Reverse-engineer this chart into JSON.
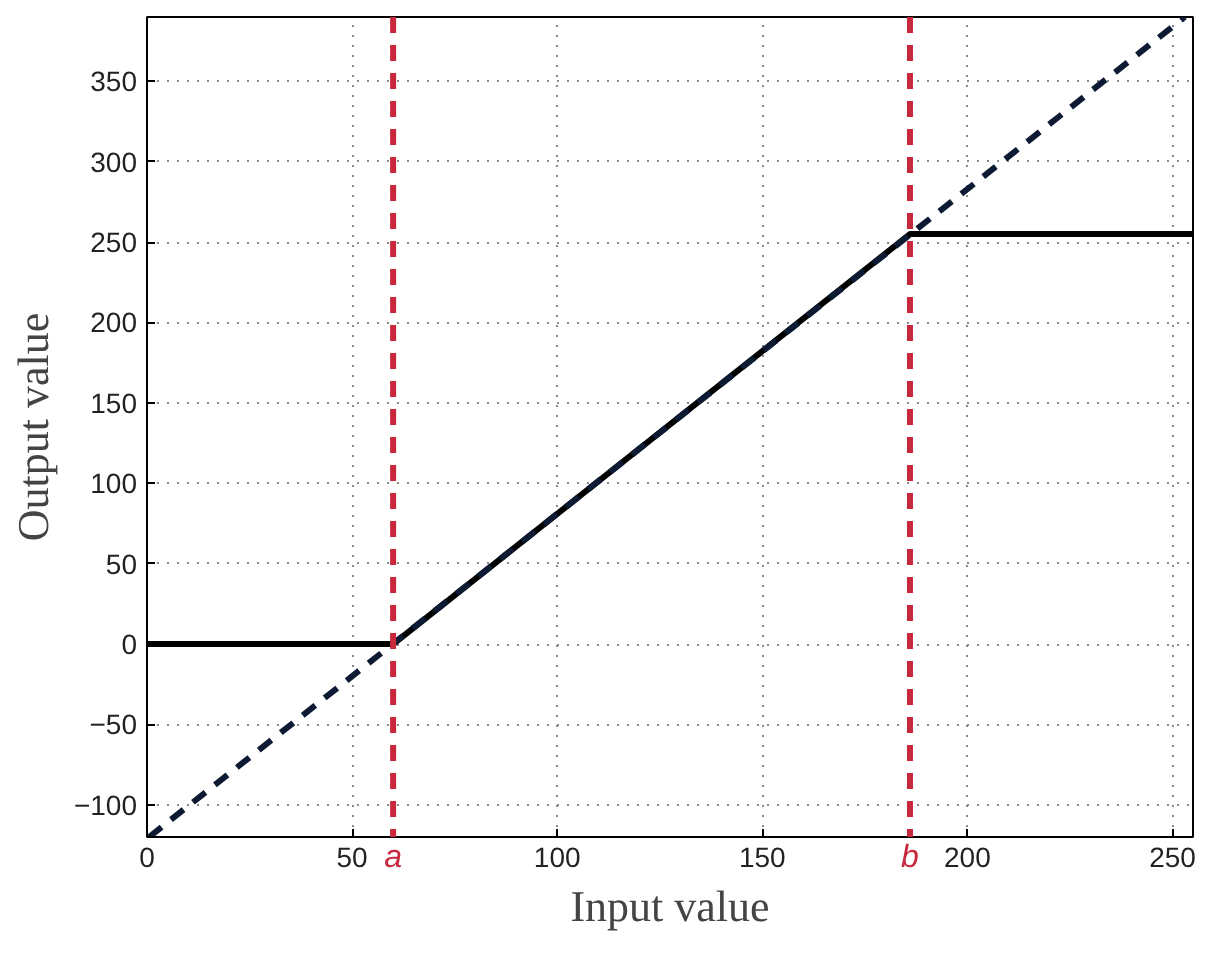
{
  "chart_data": {
    "type": "line",
    "xlabel": "Input value",
    "ylabel": "Output value",
    "xlim": [
      0,
      255
    ],
    "ylim": [
      -120,
      390
    ],
    "xticks": [
      0,
      50,
      100,
      150,
      200,
      250
    ],
    "yticks": [
      {
        "value": -100,
        "label": "−100"
      },
      {
        "value": -50,
        "label": "−50"
      },
      0,
      50,
      100,
      150,
      200,
      250,
      300,
      350
    ],
    "grid": true,
    "series": [
      {
        "color": "#000000",
        "x": [
          0,
          60,
          186,
          255
        ],
        "values": [
          0,
          0,
          255,
          255
        ],
        "line_style": "solid"
      },
      {
        "color": "#0d1a33",
        "x": [
          0.5,
          253
        ],
        "values": [
          -120,
          390
        ],
        "line_style": "dashed"
      }
    ],
    "ref_lines": [
      {
        "axis": "x",
        "value": 60,
        "label": "a",
        "color": "#c8283c",
        "line_style": "dashed"
      },
      {
        "axis": "x",
        "value": 186,
        "label": "b",
        "color": "#c8283c",
        "line_style": "dashed"
      }
    ]
  }
}
